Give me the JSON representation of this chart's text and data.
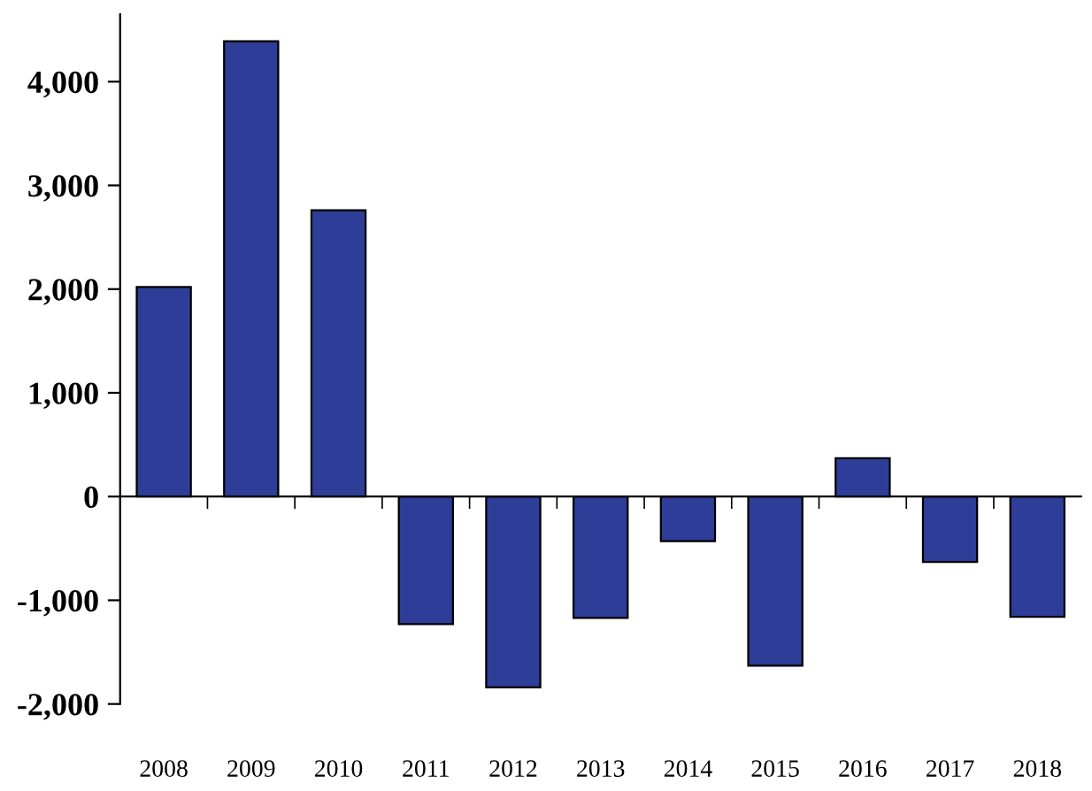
{
  "chart_data": {
    "type": "bar",
    "categories": [
      "2008",
      "2009",
      "2010",
      "2011",
      "2012",
      "2013",
      "2014",
      "2015",
      "2016",
      "2017",
      "2018"
    ],
    "values": [
      2020,
      4390,
      2760,
      -1230,
      -1840,
      -1170,
      -430,
      -1630,
      370,
      -630,
      -1160
    ],
    "color": "#2e3d98",
    "ylim": [
      -2000,
      4650
    ],
    "yticks": [
      {
        "value": -2000,
        "label": "-2,000"
      },
      {
        "value": -1000,
        "label": "-1,000"
      },
      {
        "value": 0,
        "label": "0"
      },
      {
        "value": 1000,
        "label": "1,000"
      },
      {
        "value": 2000,
        "label": "2,000"
      },
      {
        "value": 3000,
        "label": "3,000"
      },
      {
        "value": 4000,
        "label": "4,000"
      }
    ]
  }
}
